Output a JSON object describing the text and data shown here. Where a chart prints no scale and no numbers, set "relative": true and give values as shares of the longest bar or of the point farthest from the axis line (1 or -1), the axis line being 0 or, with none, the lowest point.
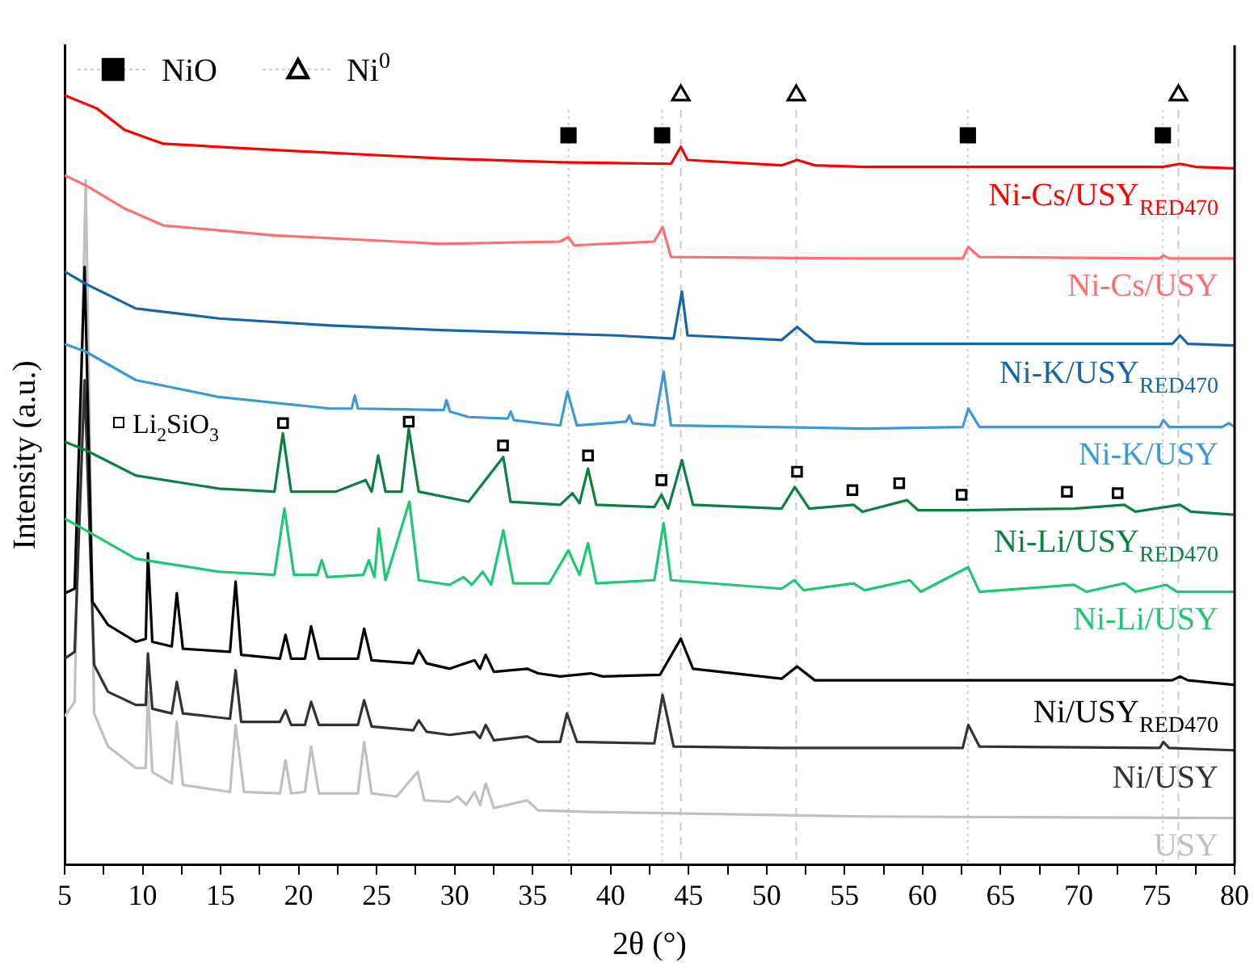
{
  "chart_data": {
    "type": "line",
    "relative": true,
    "xlabel": "2θ (°)",
    "ylabel": "Intensity (a.u.)",
    "xlim": [
      5,
      80
    ],
    "xticks": [
      5,
      {
        "value": 7.5,
        "label": null
      },
      10,
      {
        "value": 12.5,
        "label": null
      },
      15,
      {
        "value": 17.5,
        "label": null
      },
      20,
      {
        "value": 22.5,
        "label": null
      },
      25,
      {
        "value": 27.5,
        "label": null
      },
      30,
      {
        "value": 32.5,
        "label": null
      },
      35,
      {
        "value": 37.5,
        "label": null
      },
      40,
      {
        "value": 42.5,
        "label": null
      },
      45,
      {
        "value": 47.5,
        "label": null
      },
      50,
      {
        "value": 52.5,
        "label": null
      },
      55,
      {
        "value": 57.5,
        "label": null
      },
      60,
      {
        "value": 62.5,
        "label": null
      },
      65,
      {
        "value": 67.5,
        "label": null
      },
      70,
      {
        "value": 72.5,
        "label": null
      },
      75,
      {
        "value": 77.5,
        "label": null
      },
      80
    ],
    "legend": "top left",
    "grid": false,
    "series": [
      {
        "name": "Ni-Cs/USY$_{RED470}$",
        "color": "#ff0000",
        "x": [
          5,
          7.06,
          8.84,
          11.33,
          18.45,
          29.13,
          36.8,
          43.87,
          44.5,
          44.93,
          50.96,
          51.95,
          53.09,
          56.28,
          75.4,
          76.5,
          77.5,
          80
        ],
        "values": [
          1.0,
          0.983,
          0.955,
          0.937,
          0.929,
          0.918,
          0.913,
          0.911,
          0.933,
          0.916,
          0.909,
          0.916,
          0.909,
          0.907,
          0.907,
          0.911,
          0.907,
          0.905
        ]
      },
      {
        "name": "Ni-Cs/USY",
        "color": "#ff6f6f",
        "x": [
          5,
          6.35,
          8.84,
          11.33,
          18.45,
          29.13,
          36.77,
          37.3,
          37.66,
          42.8,
          43.33,
          43.87,
          56.28,
          62.57,
          62.93,
          63.64,
          75.2,
          75.43,
          75.8,
          80
        ],
        "values": [
          0.896,
          0.883,
          0.853,
          0.831,
          0.818,
          0.807,
          0.81,
          0.816,
          0.805,
          0.81,
          0.829,
          0.79,
          0.788,
          0.788,
          0.803,
          0.79,
          0.788,
          0.792,
          0.788,
          0.788
        ]
      },
      {
        "name": "Ni-K/USY$_{RED470}$",
        "color": "#1764a6",
        "x": [
          5,
          6.35,
          9.56,
          14.89,
          22.0,
          29.13,
          40.32,
          44.04,
          44.57,
          44.93,
          50.96,
          51.95,
          53.09,
          56.28,
          76.0,
          76.5,
          77.0,
          80
        ],
        "values": [
          0.771,
          0.755,
          0.723,
          0.71,
          0.701,
          0.695,
          0.688,
          0.684,
          0.745,
          0.688,
          0.682,
          0.699,
          0.68,
          0.677,
          0.677,
          0.688,
          0.677,
          0.675
        ]
      },
      {
        "name": "Ni-K/USY",
        "color": "#3b9ad6",
        "x": [
          5,
          6.35,
          9.56,
          14.89,
          22.0,
          23.4,
          23.6,
          23.8,
          29.3,
          29.48,
          29.7,
          30.9,
          33.4,
          33.6,
          33.8,
          36.77,
          37.23,
          37.84,
          41.0,
          41.2,
          41.4,
          42.8,
          43.4,
          43.87,
          56.28,
          62.57,
          62.93,
          63.64,
          75.2,
          75.43,
          75.8,
          79.2,
          79.64,
          80
        ],
        "values": [
          0.677,
          0.667,
          0.63,
          0.608,
          0.593,
          0.593,
          0.61,
          0.593,
          0.591,
          0.604,
          0.589,
          0.582,
          0.58,
          0.589,
          0.578,
          0.571,
          0.615,
          0.571,
          0.576,
          0.584,
          0.574,
          0.571,
          0.641,
          0.571,
          0.567,
          0.569,
          0.593,
          0.569,
          0.569,
          0.578,
          0.569,
          0.569,
          0.574,
          0.569
        ]
      },
      {
        "name": "Ni-Li/USY$_{RED470}$",
        "color": "#0b8040",
        "x": [
          5,
          6.35,
          9.56,
          14.89,
          18.45,
          18.99,
          19.52,
          22.37,
          24.3,
          24.68,
          25.1,
          25.57,
          26.6,
          27.06,
          27.7,
          30.9,
          33.12,
          33.58,
          36.77,
          37.55,
          38.01,
          38.55,
          39.08,
          42.8,
          43.26,
          43.69,
          44.57,
          45.28,
          50.96,
          51.81,
          52.73,
          55.57,
          56.14,
          59.0,
          59.71,
          62.57,
          69.71,
          72.93,
          73.64,
          76.5,
          77.2,
          80
        ],
        "values": [
          0.55,
          0.539,
          0.506,
          0.489,
          0.485,
          0.561,
          0.485,
          0.485,
          0.5,
          0.485,
          0.532,
          0.485,
          0.485,
          0.567,
          0.485,
          0.472,
          0.53,
          0.472,
          0.468,
          0.483,
          0.47,
          0.515,
          0.468,
          0.465,
          0.481,
          0.463,
          0.526,
          0.468,
          0.463,
          0.491,
          0.463,
          0.468,
          0.459,
          0.474,
          0.461,
          0.461,
          0.463,
          0.468,
          0.459,
          0.468,
          0.459,
          0.455
        ]
      },
      {
        "name": "Ni-Li/USY",
        "color": "#1dc774",
        "x": [
          5,
          6.35,
          9.56,
          14.89,
          18.45,
          19.09,
          19.7,
          21.2,
          21.48,
          21.83,
          24.15,
          24.5,
          24.86,
          25.14,
          25.57,
          27.1,
          27.7,
          29.68,
          30.57,
          31.1,
          31.8,
          32.34,
          33.12,
          33.76,
          36.06,
          37.3,
          37.66,
          38.01,
          38.55,
          39.08,
          42.8,
          43.4,
          43.87,
          50.96,
          51.77,
          52.38,
          55.57,
          56.28,
          59.18,
          59.89,
          62.93,
          63.64,
          69.71,
          70.5,
          72.93,
          73.64,
          75.61,
          76.3,
          80
        ],
        "values": [
          0.45,
          0.435,
          0.398,
          0.381,
          0.377,
          0.463,
          0.377,
          0.377,
          0.396,
          0.374,
          0.377,
          0.396,
          0.374,
          0.437,
          0.37,
          0.472,
          0.37,
          0.364,
          0.374,
          0.364,
          0.381,
          0.364,
          0.435,
          0.366,
          0.366,
          0.409,
          0.392,
          0.377,
          0.418,
          0.366,
          0.37,
          0.444,
          0.37,
          0.359,
          0.37,
          0.357,
          0.366,
          0.357,
          0.37,
          0.355,
          0.387,
          0.355,
          0.364,
          0.355,
          0.366,
          0.355,
          0.364,
          0.355,
          0.355
        ]
      },
      {
        "name": "Ni/USY$_{RED470}$",
        "color": "#000000",
        "x": [
          5,
          5.64,
          6.28,
          6.78,
          7.78,
          9.56,
          10.2,
          10.34,
          10.62,
          11.87,
          12.19,
          12.58,
          15.6,
          15.96,
          16.32,
          18.8,
          19.16,
          19.52,
          20.4,
          20.8,
          21.3,
          23.8,
          24.2,
          24.68,
          27.35,
          27.7,
          28.2,
          29.68,
          31.28,
          31.63,
          31.99,
          32.52,
          34.65,
          35.35,
          36.77,
          38.72,
          39.5,
          43.16,
          44.5,
          45.28,
          50.96,
          51.95,
          53.09,
          56.28,
          76.0,
          76.5,
          77.0,
          80
        ],
        "values": [
          0.353,
          0.359,
          0.777,
          0.342,
          0.312,
          0.29,
          0.294,
          0.405,
          0.29,
          0.284,
          0.353,
          0.281,
          0.277,
          0.368,
          0.273,
          0.268,
          0.299,
          0.268,
          0.268,
          0.31,
          0.268,
          0.268,
          0.307,
          0.266,
          0.262,
          0.279,
          0.262,
          0.255,
          0.266,
          0.255,
          0.273,
          0.251,
          0.255,
          0.249,
          0.245,
          0.249,
          0.245,
          0.247,
          0.294,
          0.255,
          0.242,
          0.258,
          0.24,
          0.24,
          0.24,
          0.245,
          0.24,
          0.234
        ]
      },
      {
        "name": "Ni/USY",
        "color": "#333333",
        "x": [
          5,
          5.64,
          6.28,
          6.89,
          7.78,
          9.56,
          10.2,
          10.34,
          10.62,
          11.87,
          12.19,
          12.58,
          15.6,
          15.96,
          16.32,
          18.8,
          19.16,
          19.52,
          20.4,
          20.8,
          21.3,
          23.8,
          24.2,
          24.68,
          27.35,
          27.7,
          28.2,
          29.68,
          31.28,
          31.63,
          31.99,
          32.52,
          34.65,
          35.35,
          36.77,
          37.2,
          37.84,
          42.8,
          43.33,
          44.04,
          50.96,
          62.57,
          62.93,
          63.64,
          75.2,
          75.43,
          75.8,
          80
        ],
        "values": [
          0.268,
          0.277,
          0.63,
          0.26,
          0.225,
          0.208,
          0.208,
          0.275,
          0.203,
          0.197,
          0.238,
          0.197,
          0.19,
          0.253,
          0.186,
          0.186,
          0.201,
          0.182,
          0.182,
          0.212,
          0.182,
          0.182,
          0.214,
          0.18,
          0.175,
          0.188,
          0.173,
          0.169,
          0.173,
          0.165,
          0.182,
          0.162,
          0.167,
          0.16,
          0.16,
          0.197,
          0.16,
          0.158,
          0.221,
          0.154,
          0.152,
          0.152,
          0.182,
          0.154,
          0.152,
          0.16,
          0.152,
          0.149
        ]
      },
      {
        "name": "USY",
        "color": "#c0c0c0",
        "x": [
          5,
          5.64,
          6.35,
          6.89,
          7.78,
          9.56,
          10.2,
          10.34,
          10.62,
          11.87,
          12.19,
          12.58,
          15.6,
          15.96,
          16.5,
          18.8,
          19.16,
          19.52,
          20.4,
          20.8,
          21.3,
          23.8,
          24.2,
          24.68,
          26.28,
          27.63,
          28.06,
          29.68,
          30.21,
          30.74,
          31.28,
          31.63,
          31.99,
          32.52,
          34.65,
          35.35,
          38.72,
          56.28,
          80
        ],
        "values": [
          0.193,
          0.212,
          0.89,
          0.197,
          0.154,
          0.126,
          0.126,
          0.225,
          0.121,
          0.106,
          0.186,
          0.104,
          0.095,
          0.182,
          0.095,
          0.093,
          0.136,
          0.093,
          0.095,
          0.154,
          0.093,
          0.093,
          0.16,
          0.093,
          0.089,
          0.121,
          0.084,
          0.082,
          0.089,
          0.078,
          0.095,
          0.078,
          0.106,
          0.074,
          0.084,
          0.071,
          0.069,
          0.063,
          0.061
        ]
      },
      {
        "name": "NiO",
        "type": "scatter",
        "marker": "square",
        "color": "#000000",
        "x": [
          37.3,
          43.3,
          62.9,
          75.4
        ],
        "values": [
          0.948,
          0.948,
          0.948,
          0.948
        ]
      },
      {
        "name": "Ni$^{0}$",
        "type": "scatter",
        "marker": "triangle",
        "color": "#000000",
        "x": [
          44.5,
          51.9,
          76.4
        ],
        "values": [
          1.0,
          1.0,
          1.0
        ]
      },
      {
        "type": "scatter",
        "marker": "square",
        "color": "#000000",
        "x": [
          19.0,
          27.06,
          33.1,
          38.55,
          43.26,
          51.95,
          55.5,
          58.5,
          62.5,
          69.25,
          72.5
        ],
        "values": [
          0.574,
          0.576,
          0.545,
          0.532,
          0.5,
          0.511,
          0.487,
          0.496,
          0.481,
          0.485,
          0.483
        ]
      }
    ],
    "ref_lines": [
      {
        "axis": "x",
        "value": 37.3,
        "color": "#cccccc",
        "line_style": "dotted"
      },
      {
        "axis": "x",
        "value": 43.3,
        "color": "#cccccc",
        "line_style": "dotted"
      },
      {
        "axis": "x",
        "value": 62.9,
        "color": "#cccccc",
        "line_style": "dotted"
      },
      {
        "axis": "x",
        "value": 75.4,
        "color": "#cccccc",
        "line_style": "dotted"
      },
      {
        "axis": "x",
        "value": 44.5,
        "color": "#cccccc",
        "line_style": "dashed"
      },
      {
        "axis": "x",
        "value": 51.9,
        "color": "#cccccc",
        "line_style": "dashed"
      },
      {
        "axis": "x",
        "value": 76.4,
        "color": "#cccccc",
        "line_style": "dashed"
      }
    ],
    "annotations": [
      "Li$_{2}$SiO$_{3}$"
    ]
  }
}
